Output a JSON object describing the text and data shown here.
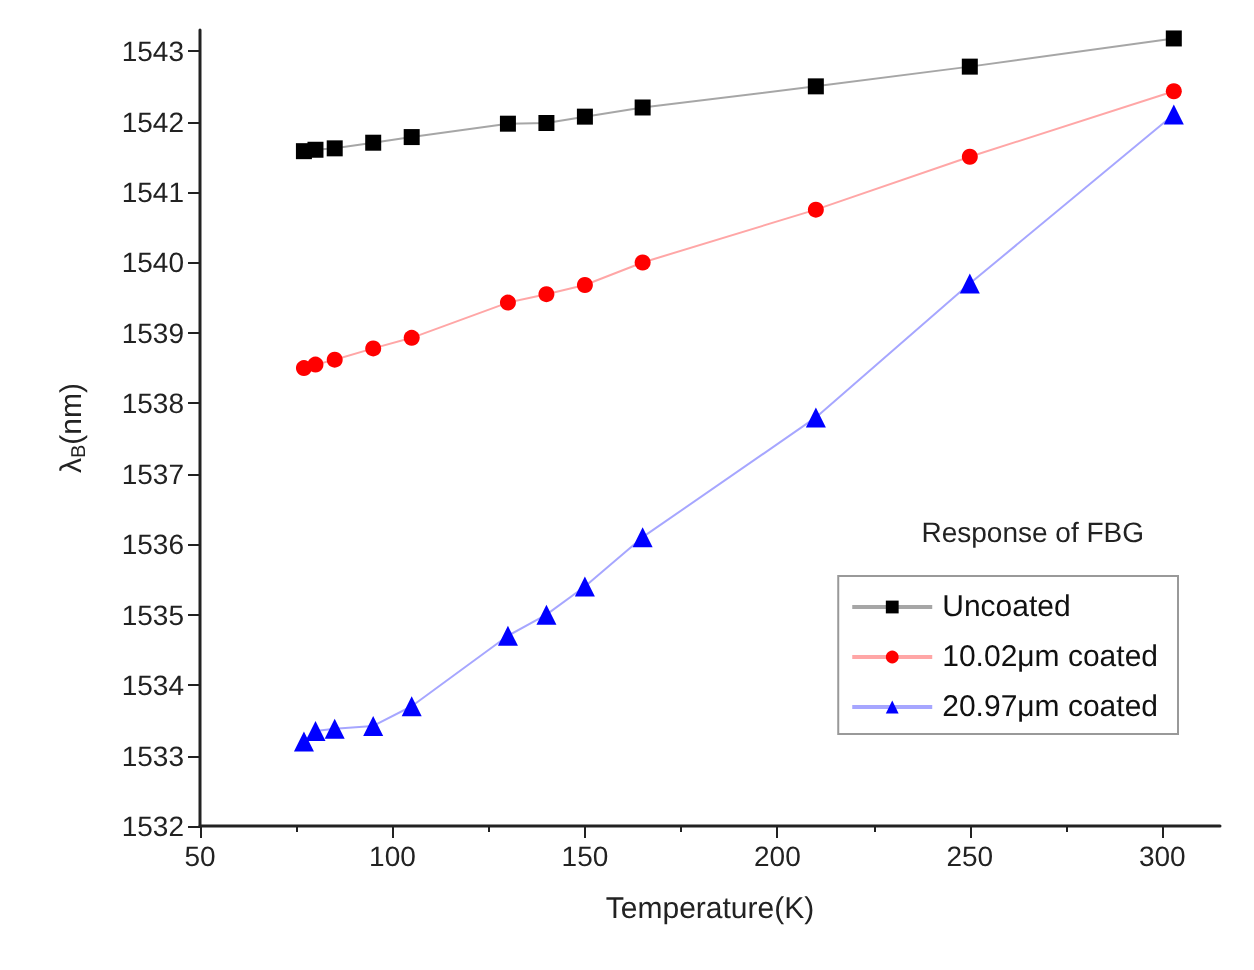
{
  "chart_data": {
    "type": "line",
    "xlabel": "Temperature(K)",
    "ylabel": "λ$_{B}$(nm)",
    "legend_title": "Response of FBG",
    "legend": "bottom right",
    "x": [
      77,
      80,
      85,
      95,
      105,
      130,
      140,
      150,
      165,
      210,
      250,
      303
    ],
    "series": [
      {
        "name": "Uncoated",
        "color": "#000000",
        "marker": "square",
        "values": [
          1541.58,
          1541.6,
          1541.62,
          1541.7,
          1541.78,
          1541.97,
          1541.98,
          1542.07,
          1542.2,
          1542.5,
          1542.78,
          1543.18
        ]
      },
      {
        "name": "10.02μm coated",
        "color": "#ff0000",
        "marker": "circle",
        "values": [
          1538.5,
          1538.55,
          1538.62,
          1538.78,
          1538.93,
          1539.43,
          1539.55,
          1539.68,
          1540.0,
          1540.75,
          1541.5,
          1542.43
        ]
      },
      {
        "name": "20.97μm coated",
        "color": "#0000ff",
        "marker": "triangle",
        "values": [
          1533.2,
          1533.35,
          1533.38,
          1533.42,
          1533.7,
          1534.7,
          1535.0,
          1535.4,
          1536.1,
          1537.8,
          1539.7,
          1542.1
        ]
      }
    ],
    "xlim": [
      50,
      315
    ],
    "ylim": [
      1532,
      1543.3
    ],
    "xticks": [
      50,
      100,
      150,
      200,
      250,
      300
    ],
    "yticks": [
      1532,
      1533,
      1534,
      1535,
      1536,
      1537,
      1538,
      1539,
      1540,
      1541,
      1542,
      1543
    ],
    "grid": false
  }
}
